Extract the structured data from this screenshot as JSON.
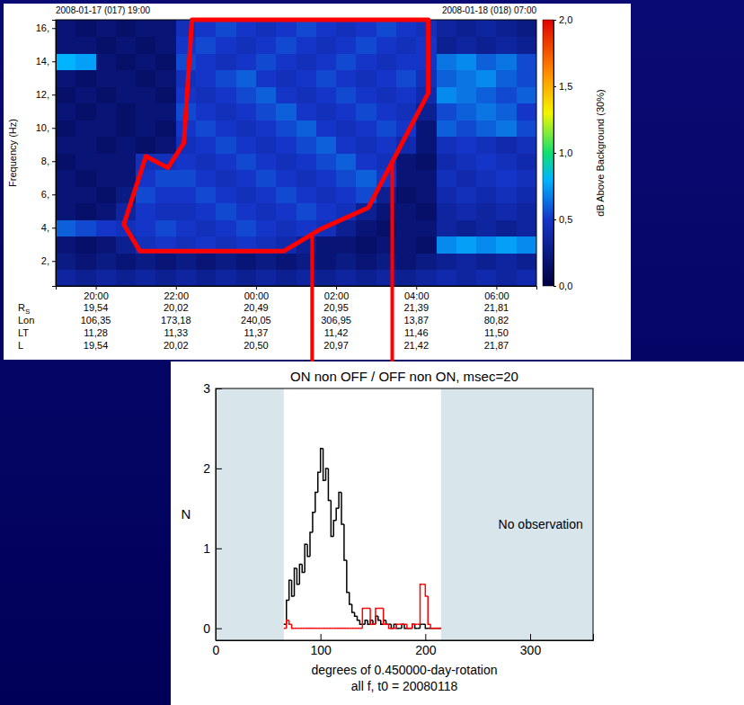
{
  "chart_data": [
    {
      "type": "heatmap",
      "header_left": "2008-01-17 (017) 19:00",
      "header_right": "2008-01-18 (018) 07:00",
      "y_label": "Frequency (Hz)",
      "xlim": [
        19,
        31
      ],
      "xticks": [
        {
          "value": 20,
          "label": "20:00"
        },
        {
          "value": 22,
          "label": "22:00"
        },
        {
          "value": 24,
          "label": "00:00"
        },
        {
          "value": 26,
          "label": "02:00"
        },
        {
          "value": 28,
          "label": "04:00"
        },
        {
          "value": 30,
          "label": "06:00"
        }
      ],
      "ylim": [
        0.5,
        16.5
      ],
      "yticks": [
        {
          "value": 2,
          "label": "2,"
        },
        {
          "value": 4,
          "label": "4,"
        },
        {
          "value": 6,
          "label": "6,"
        },
        {
          "value": 8,
          "label": "8,"
        },
        {
          "value": 10,
          "label": "10,"
        },
        {
          "value": 12,
          "label": "12,"
        },
        {
          "value": 14,
          "label": "14,"
        },
        {
          "value": 16,
          "label": "16,"
        }
      ],
      "x_edges": [
        19,
        19.5,
        20,
        20.5,
        21,
        21.5,
        22,
        22.5,
        23,
        23.5,
        24,
        24.5,
        25,
        25.5,
        26,
        26.5,
        27,
        27.5,
        28,
        28.5,
        29,
        29.5,
        30,
        30.5,
        31
      ],
      "y_edges": [
        0.5,
        1.5,
        2.5,
        3.5,
        4.5,
        5.5,
        6.5,
        7.5,
        8.5,
        9.5,
        10.5,
        11.5,
        12.5,
        13.5,
        14.5,
        15.5,
        16.5
      ],
      "cells": [
        [
          0.35,
          0.3,
          0.35,
          0.3,
          0.35,
          0.3,
          0.35,
          0.3,
          0.35,
          0.3,
          0.35,
          0.3,
          0.35,
          0.3,
          0.35,
          0.3,
          0.35,
          0.3,
          0.35,
          0.4,
          0.35,
          0.4,
          0.35,
          0.4
        ],
        [
          0.25,
          0.2,
          0.25,
          0.2,
          0.25,
          0.2,
          0.25,
          0.2,
          0.25,
          0.2,
          0.25,
          0.2,
          0.25,
          0.2,
          0.25,
          0.2,
          0.25,
          0.2,
          0.25,
          0.3,
          0.35,
          0.3,
          0.35,
          0.3
        ],
        [
          0.2,
          0.15,
          0.2,
          0.3,
          0.45,
          0.5,
          0.45,
          0.5,
          0.45,
          0.5,
          0.45,
          0.4,
          0.3,
          0.2,
          0.2,
          0.15,
          0.2,
          0.2,
          0.15,
          0.7,
          0.75,
          0.7,
          0.75,
          0.7
        ],
        [
          0.6,
          0.55,
          0.5,
          0.45,
          0.5,
          0.55,
          0.5,
          0.45,
          0.5,
          0.55,
          0.5,
          0.45,
          0.5,
          0.45,
          0.3,
          0.2,
          0.15,
          0.2,
          0.2,
          0.35,
          0.3,
          0.35,
          0.3,
          0.35
        ],
        [
          0.2,
          0.15,
          0.2,
          0.35,
          0.5,
          0.45,
          0.45,
          0.5,
          0.55,
          0.5,
          0.45,
          0.5,
          0.55,
          0.5,
          0.45,
          0.3,
          0.2,
          0.2,
          0.15,
          0.35,
          0.4,
          0.35,
          0.4,
          0.35
        ],
        [
          0.2,
          0.2,
          0.15,
          0.25,
          0.55,
          0.5,
          0.5,
          0.55,
          0.5,
          0.45,
          0.5,
          0.55,
          0.5,
          0.45,
          0.5,
          0.55,
          0.3,
          0.15,
          0.2,
          0.4,
          0.45,
          0.4,
          0.45,
          0.4
        ],
        [
          0.2,
          0.15,
          0.2,
          0.2,
          0.5,
          0.55,
          0.55,
          0.5,
          0.45,
          0.5,
          0.55,
          0.5,
          0.45,
          0.5,
          0.55,
          0.6,
          0.5,
          0.2,
          0.2,
          0.45,
          0.4,
          0.45,
          0.5,
          0.45
        ],
        [
          0.15,
          0.2,
          0.2,
          0.2,
          0.45,
          0.45,
          0.5,
          0.45,
          0.5,
          0.55,
          0.5,
          0.45,
          0.5,
          0.55,
          0.6,
          0.5,
          0.45,
          0.2,
          0.15,
          0.4,
          0.45,
          0.5,
          0.45,
          0.4
        ],
        [
          0.2,
          0.2,
          0.15,
          0.2,
          0.15,
          0.2,
          0.45,
          0.5,
          0.55,
          0.5,
          0.45,
          0.5,
          0.55,
          0.6,
          0.5,
          0.45,
          0.5,
          0.4,
          0.2,
          0.45,
          0.5,
          0.45,
          0.4,
          0.45
        ],
        [
          0.15,
          0.2,
          0.2,
          0.15,
          0.2,
          0.15,
          0.5,
          0.55,
          0.5,
          0.45,
          0.5,
          0.55,
          0.6,
          0.5,
          0.45,
          0.5,
          0.55,
          0.5,
          0.2,
          0.6,
          0.55,
          0.6,
          0.65,
          0.55
        ],
        [
          0.2,
          0.15,
          0.2,
          0.15,
          0.2,
          0.2,
          0.55,
          0.5,
          0.45,
          0.5,
          0.55,
          0.6,
          0.5,
          0.45,
          0.5,
          0.55,
          0.5,
          0.45,
          0.3,
          0.55,
          0.6,
          0.65,
          0.6,
          0.5
        ],
        [
          0.15,
          0.2,
          0.15,
          0.2,
          0.2,
          0.15,
          0.5,
          0.45,
          0.5,
          0.55,
          0.6,
          0.5,
          0.45,
          0.5,
          0.55,
          0.5,
          0.45,
          0.5,
          0.4,
          0.7,
          0.65,
          0.6,
          0.55,
          0.6
        ],
        [
          0.2,
          0.15,
          0.2,
          0.2,
          0.15,
          0.2,
          0.45,
          0.5,
          0.55,
          0.6,
          0.5,
          0.45,
          0.5,
          0.55,
          0.5,
          0.45,
          0.5,
          0.55,
          0.45,
          0.6,
          0.65,
          0.7,
          0.6,
          0.55
        ],
        [
          0.8,
          0.75,
          0.2,
          0.15,
          0.2,
          0.15,
          0.55,
          0.5,
          0.45,
          0.5,
          0.55,
          0.5,
          0.45,
          0.5,
          0.55,
          0.5,
          0.45,
          0.5,
          0.5,
          0.65,
          0.7,
          0.6,
          0.65,
          0.55
        ],
        [
          0.2,
          0.2,
          0.15,
          0.2,
          0.15,
          0.2,
          0.5,
          0.55,
          0.5,
          0.45,
          0.5,
          0.55,
          0.5,
          0.45,
          0.5,
          0.55,
          0.5,
          0.45,
          0.5,
          0.3,
          0.35,
          0.3,
          0.35,
          0.3
        ],
        [
          0.2,
          0.15,
          0.2,
          0.15,
          0.2,
          0.2,
          0.45,
          0.5,
          0.55,
          0.5,
          0.45,
          0.5,
          0.55,
          0.5,
          0.45,
          0.5,
          0.55,
          0.5,
          0.45,
          0.35,
          0.3,
          0.35,
          0.3,
          0.25
        ]
      ],
      "colorbar": {
        "label": "dB Above Background (30%)",
        "range": [
          0,
          2
        ],
        "ticks": [
          {
            "value": 2,
            "label": "2,0"
          },
          {
            "value": 1.5,
            "label": "1,5"
          },
          {
            "value": 1,
            "label": "1,0"
          },
          {
            "value": 0.5,
            "label": "0,5"
          },
          {
            "value": 0,
            "label": "0,0"
          }
        ]
      },
      "ephemeris": [
        {
          "label": "R",
          "label_sub": "S",
          "values": [
            "19,54",
            "20,02",
            "20,49",
            "20,95",
            "21,39",
            "21,81"
          ]
        },
        {
          "label": "Lon",
          "values": [
            "106,35",
            "173,18",
            "240,05",
            "306,95",
            "13,87",
            "80,82"
          ]
        },
        {
          "label": "LT",
          "values": [
            "11,28",
            "11,33",
            "11,37",
            "11,42",
            "11,46",
            "11,50"
          ]
        },
        {
          "label": "L",
          "values": [
            "19,54",
            "20,02",
            "20,50",
            "20,97",
            "21,42",
            "21,87"
          ]
        }
      ],
      "highlight": {
        "color": "#ff0000",
        "points": [
          [
            22.4,
            16.5
          ],
          [
            28.3,
            16.5
          ],
          [
            28.3,
            12.1
          ],
          [
            26.8,
            5.2
          ],
          [
            25.6,
            3.9
          ],
          [
            24.7,
            2.6
          ],
          [
            21.1,
            2.6
          ],
          [
            20.7,
            4.2
          ],
          [
            21.25,
            8.3
          ],
          [
            21.8,
            7.6
          ],
          [
            22.2,
            9.1
          ]
        ],
        "link_x": [
          25.4,
          27.4
        ]
      }
    },
    {
      "type": "histogram",
      "title": "ON non OFF / OFF non ON, msec=20",
      "x_label": [
        "degrees of 0.450000-day-rotation",
        "all f, t0 = 20080118"
      ],
      "y_label": "N",
      "xlim": [
        0,
        360
      ],
      "xticks": [
        0,
        100,
        200,
        300
      ],
      "ylim": [
        -0.15,
        3
      ],
      "yticks": [
        0,
        1,
        2,
        3
      ],
      "bins": [
        65,
        67.5,
        70,
        72.5,
        75,
        77.5,
        80,
        82.5,
        85,
        87.5,
        90,
        92.5,
        95,
        97.5,
        100,
        102.5,
        105,
        107.5,
        110,
        112.5,
        115,
        117.5,
        120,
        122.5,
        125,
        127.5,
        130,
        132.5,
        135,
        137.5,
        140,
        142.5,
        145,
        147.5,
        150,
        152.5,
        155,
        157.5,
        160,
        162.5,
        165,
        167.5,
        170,
        172.5,
        175,
        177.5,
        180,
        182.5,
        185,
        187.5,
        190,
        192.5,
        195,
        197.5,
        200,
        202.5,
        205,
        207.5,
        210,
        212.5,
        215
      ],
      "series": [
        {
          "color": "#000000",
          "values": [
            0.05,
            0.35,
            0.6,
            0.4,
            0.75,
            0.55,
            0.8,
            0.7,
            1.05,
            0.9,
            1.2,
            1.45,
            1.7,
            1.95,
            2.25,
            1.85,
            2.0,
            1.6,
            1.15,
            1.35,
            1.5,
            1.7,
            1.3,
            0.85,
            0.45,
            0.3,
            0.2,
            0.15,
            0.1,
            0.05,
            0.05,
            0.1,
            0.05,
            0.1,
            0.05,
            0.15,
            0.1,
            0.05,
            0.1,
            0.05,
            0.05,
            0,
            0.05,
            0,
            0,
            0.05,
            0,
            0,
            0,
            0.05,
            0,
            0,
            0.05,
            0.05,
            0,
            0,
            0,
            0,
            0,
            0
          ]
        },
        {
          "color": "#ff0000",
          "values": [
            0,
            0.1,
            0.05,
            0,
            0,
            0,
            0,
            0,
            0,
            0,
            0,
            0,
            0,
            0,
            0,
            0,
            0,
            0,
            0,
            0,
            0,
            0,
            0,
            0,
            0,
            0,
            0,
            0,
            0,
            0,
            0.25,
            0.25,
            0.25,
            0.05,
            0.05,
            0.25,
            0.25,
            0.25,
            0.05,
            0.05,
            0,
            0,
            0,
            0.05,
            0.05,
            0.05,
            0.05,
            0,
            0,
            0.05,
            0.05,
            0.05,
            0.55,
            0.55,
            0.4,
            0.05,
            0,
            0,
            0,
            0
          ]
        }
      ],
      "no_observation": {
        "text": "No observation",
        "ranges": [
          [
            0,
            65
          ],
          [
            215,
            360
          ]
        ],
        "x": 310,
        "y": 1.25
      }
    }
  ]
}
